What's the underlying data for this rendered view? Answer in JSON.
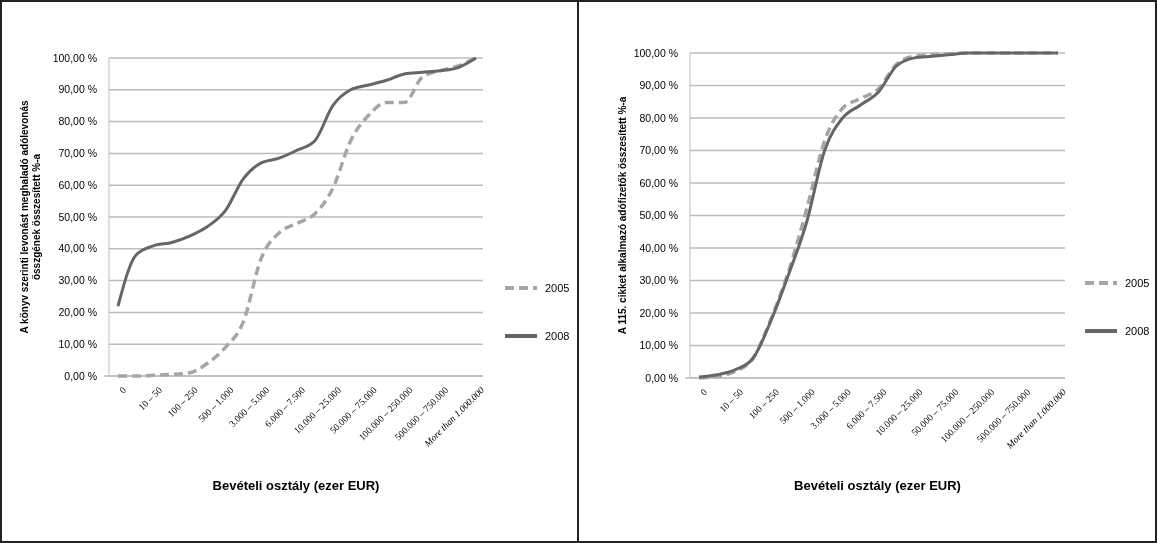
{
  "chart_data": [
    {
      "type": "line",
      "xlabel": "Bevételi osztály (ezer EUR)",
      "ylabel": "A könyv szerinti levonást meghaladó adólevonás összgének összesített %-a",
      "categories": [
        "0",
        null,
        "10 – 50",
        null,
        "100 – 250",
        null,
        "500 – 1.000",
        null,
        "3.000 – 5.000",
        null,
        "6.000 – 7.500",
        null,
        "10.000 – 25.000",
        null,
        "50.000 – 75.000",
        null,
        "100.000 – 250.000",
        null,
        "500.000 – 750.000",
        null,
        "More than 1.000.000"
      ],
      "series": [
        {
          "name": "2005",
          "color": "#a6a6a6",
          "line_style": "dashed",
          "values": [
            0,
            0,
            0.2,
            0.5,
            1,
            4,
            9,
            17,
            37,
            45,
            48,
            51,
            59,
            74,
            82,
            86,
            86,
            94,
            96,
            97.5,
            100
          ]
        },
        {
          "name": "2008",
          "color": "#666666",
          "line_style": "solid",
          "values": [
            22,
            38,
            41,
            42,
            44,
            47,
            52,
            62,
            67,
            68.5,
            71,
            74,
            85,
            90,
            91.5,
            93,
            95,
            95.5,
            96,
            97,
            100
          ]
        }
      ],
      "ylim": [
        0,
        100
      ],
      "yticks": [
        {
          "value": 0,
          "label": "0,00 %"
        },
        {
          "value": 10,
          "label": "10,00 %"
        },
        {
          "value": 20,
          "label": "20,00 %"
        },
        {
          "value": 30,
          "label": "30,00 %"
        },
        {
          "value": 40,
          "label": "40,00 %"
        },
        {
          "value": 50,
          "label": "50,00 %"
        },
        {
          "value": 60,
          "label": "60,00 %"
        },
        {
          "value": 70,
          "label": "70,00 %"
        },
        {
          "value": 80,
          "label": "80,00 %"
        },
        {
          "value": 90,
          "label": "90,00 %"
        },
        {
          "value": 100,
          "label": "100,00 %"
        }
      ],
      "grid": "y",
      "legend": "right",
      "marker": "none"
    },
    {
      "type": "line",
      "xlabel": "Bevételi osztály (ezer EUR)",
      "ylabel": "A 115. cikket alkalmazó adófizetők összesített %-a",
      "categories": [
        "0",
        null,
        "10 – 50",
        null,
        "100 – 250",
        null,
        "500 – 1.000",
        null,
        "3.000 – 5.000",
        null,
        "6.000 – 7.500",
        null,
        "10.000 – 25.000",
        null,
        "50.000 – 75.000",
        null,
        "100.000 – 250.000",
        null,
        "500.000 – 750.000",
        null,
        "More than 1.000.000"
      ],
      "series": [
        {
          "name": "2005",
          "color": "#a6a6a6",
          "line_style": "dashed",
          "values": [
            0,
            0.5,
            2,
            6,
            18,
            33,
            52,
            73,
            83,
            86,
            89,
            96.5,
            99,
            99.5,
            99.8,
            100,
            100,
            100,
            100,
            100,
            100
          ]
        },
        {
          "name": "2008",
          "color": "#666666",
          "line_style": "solid",
          "values": [
            0.3,
            1,
            2.5,
            6,
            17.5,
            32,
            48,
            70,
            80,
            84,
            88,
            96,
            98.5,
            99,
            99.5,
            100,
            100,
            100,
            100,
            100,
            100
          ]
        }
      ],
      "ylim": [
        0,
        100
      ],
      "yticks": [
        {
          "value": 0,
          "label": "0,00 %"
        },
        {
          "value": 10,
          "label": "10,00 %"
        },
        {
          "value": 20,
          "label": "20,00 %"
        },
        {
          "value": 30,
          "label": "30,00 %"
        },
        {
          "value": 40,
          "label": "40,00 %"
        },
        {
          "value": 50,
          "label": "50,00 %"
        },
        {
          "value": 60,
          "label": "60,00 %"
        },
        {
          "value": 70,
          "label": "70,00 %"
        },
        {
          "value": 80,
          "label": "80,00 %"
        },
        {
          "value": 90,
          "label": "90,00 %"
        },
        {
          "value": 100,
          "label": "100,00 %"
        }
      ],
      "grid": "y",
      "legend": "right",
      "marker": "none"
    }
  ]
}
